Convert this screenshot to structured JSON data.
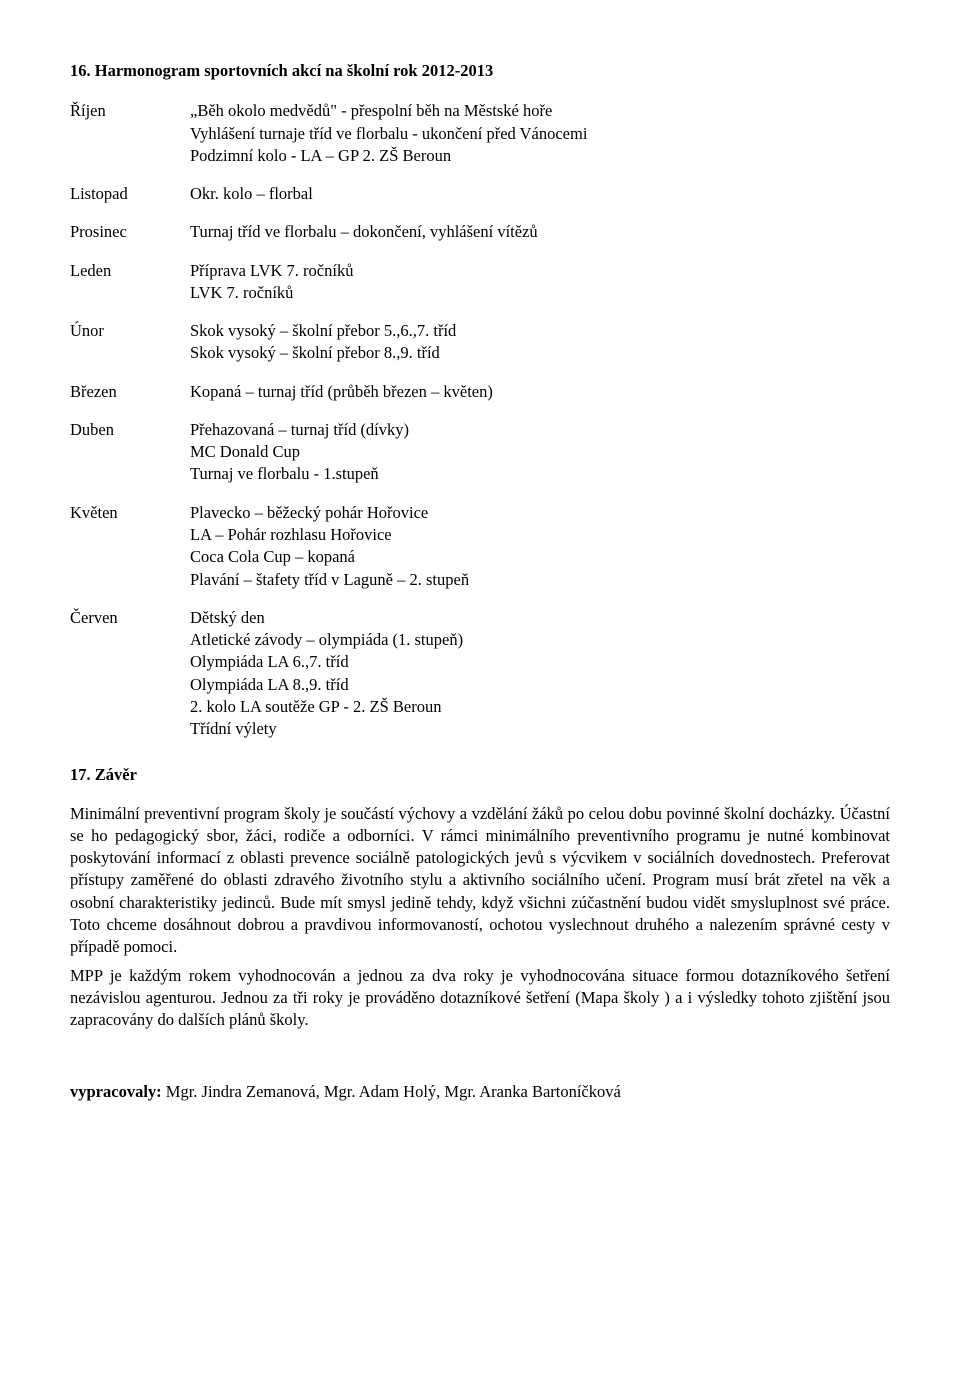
{
  "heading": "16. Harmonogram sportovních akcí na školní rok 2012-2013",
  "months": {
    "rijen": {
      "label": "Říjen",
      "lines": [
        "„Běh okolo medvědů\" - přespolní běh na Městské hoře",
        "Vyhlášení turnaje tříd ve florbalu - ukončení před Vánocemi",
        "Podzimní kolo  - LA – GP 2. ZŠ Beroun"
      ]
    },
    "listopad": {
      "label": "Listopad",
      "lines": [
        "Okr. kolo – florbal"
      ]
    },
    "prosinec": {
      "label": "Prosinec",
      "lines": [
        "Turnaj tříd ve florbalu – dokončení, vyhlášení vítězů"
      ]
    },
    "leden": {
      "label": "Leden",
      "lines": [
        "Příprava LVK  7. ročníků",
        "LVK  7. ročníků"
      ]
    },
    "unor": {
      "label": "Únor",
      "lines": [
        "Skok vysoký – školní přebor 5.,6.,7. tříd",
        "Skok vysoký – školní přebor 8.,9. tříd"
      ]
    },
    "brezen": {
      "label": "Březen",
      "lines": [
        "Kopaná – turnaj tříd  (průběh březen – květen)"
      ]
    },
    "duben": {
      "label": "Duben",
      "lines": [
        "Přehazovaná – turnaj tříd  (dívky)",
        " MC Donald Cup",
        "Turnaj ve florbalu  -  1.stupeň"
      ]
    },
    "kveten": {
      "label": "Květen",
      "lines": [
        "Plavecko – běžecký pohár  Hořovice",
        "LA – Pohár rozhlasu   Hořovice",
        "Coca Cola Cup – kopaná",
        "Plavání – štafety tříd v Laguně – 2. stupeň"
      ]
    },
    "cerven": {
      "label": "Červen",
      "lines": [
        "Dětský den",
        "Atletické závody – olympiáda  (1. stupeň)",
        "Olympiáda LA  6.,7. tříd",
        "Olympiáda LA  8.,9. tříd",
        "2. kolo LA soutěže GP  -  2. ZŠ Beroun",
        "Třídní výlety"
      ]
    }
  },
  "zaver": {
    "heading": "17. Závěr",
    "para1": "Minimální preventivní program školy je součástí výchovy a vzdělání žáků po celou dobu povinné školní docházky. Účastní se ho pedagogický sbor, žáci, rodiče a odborníci. V rámci minimálního preventivního programu je nutné kombinovat poskytování informací z oblasti prevence sociálně patologických jevů s výcvikem v sociálních dovednostech. Preferovat přístupy zaměřené do oblasti zdravého životního stylu a aktivního sociálního učení. Program musí brát zřetel na věk a osobní charakteristiky jedinců. Bude mít smysl jedině tehdy, když všichni zúčastnění budou vidět smysluplnost své práce. Toto chceme dosáhnout dobrou a pravdivou informovaností, ochotou vyslechnout druhého a nalezením správné cesty v případě pomoci.",
    "para2": "MPP je každým rokem vyhodnocován a jednou za dva roky je vyhodnocována situace formou dotazníkového šetření  nezávislou agenturou. Jednou za tři roky je prováděno dotazníkové šetření (Mapa školy ) a i výsledky tohoto zjištění jsou zapracovány do dalších plánů školy."
  },
  "authors_prefix": "vypracovaly: ",
  "authors_names": "Mgr. Jindra Zemanová, Mgr. Adam Holý, Mgr. Aranka Bartoníčková"
}
